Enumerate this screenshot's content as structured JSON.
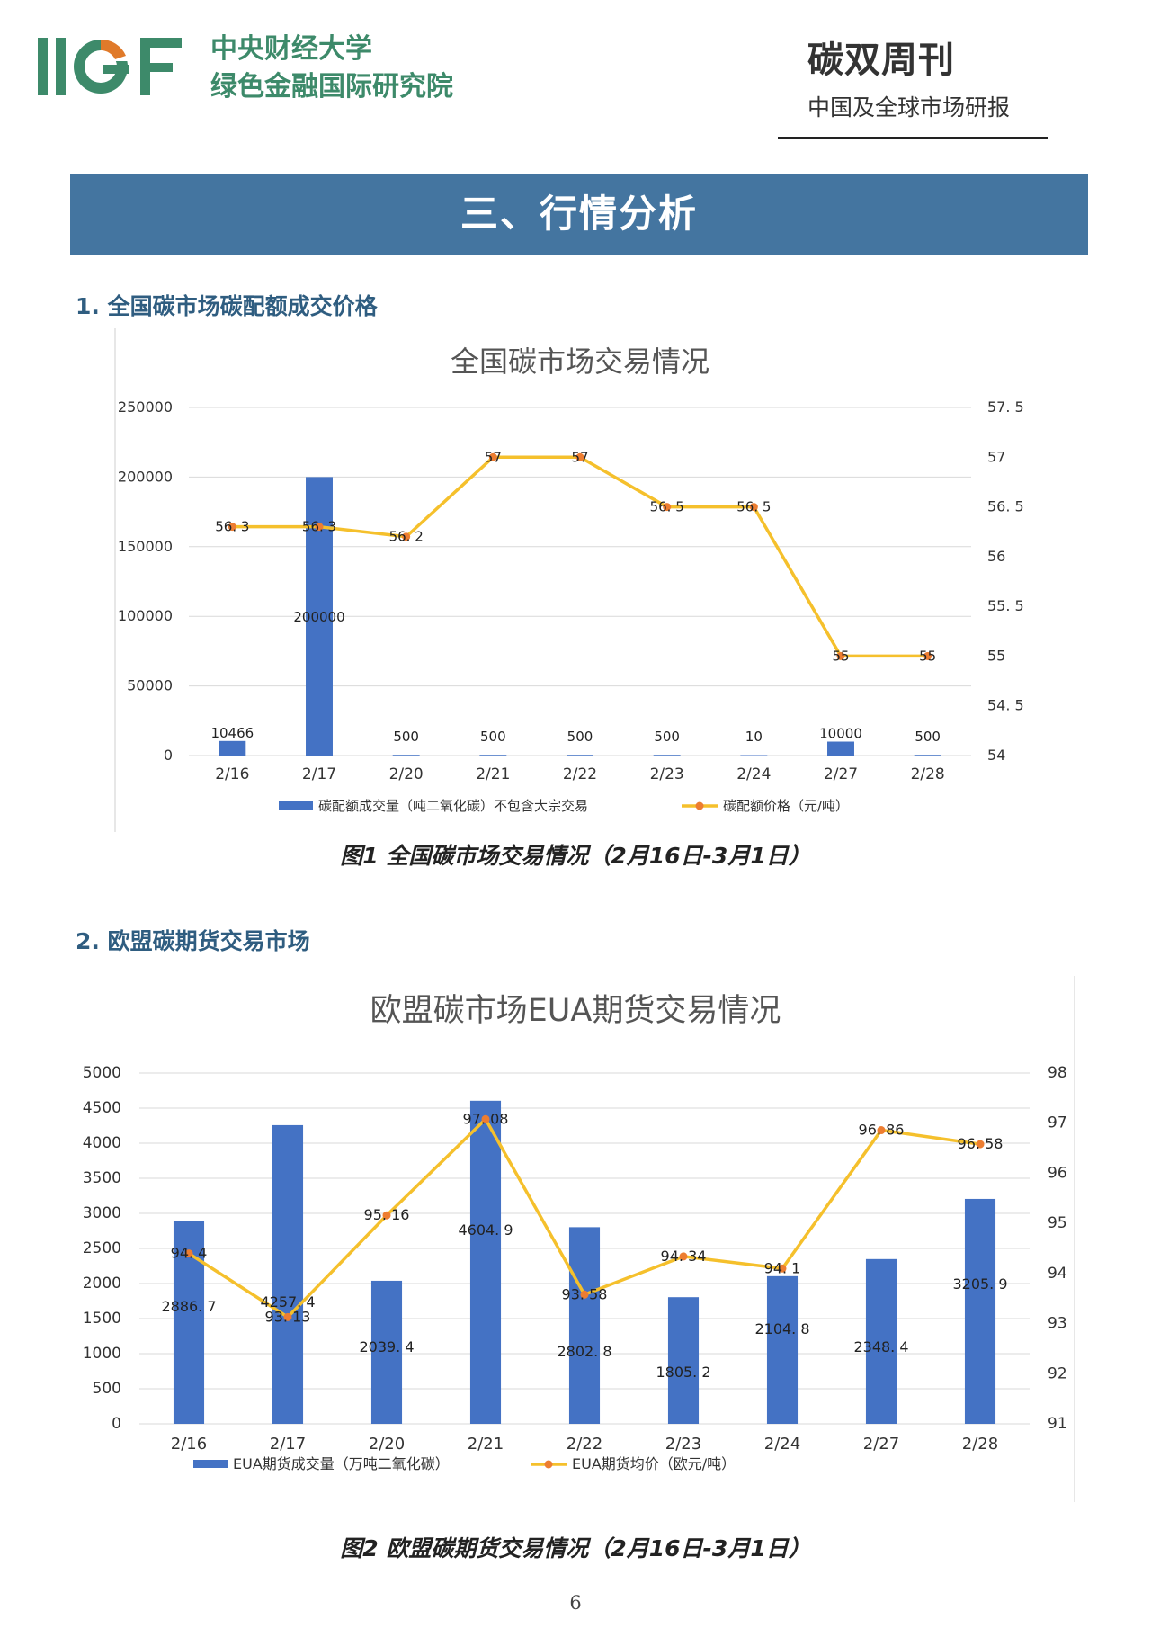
{
  "header": {
    "org_line1": "中央财经大学",
    "org_line2": "绿色金融国际研究院",
    "pub_title": "碳双周刊",
    "pub_subtitle": "中国及全球市场研报"
  },
  "banner": {
    "title": "三、行情分析"
  },
  "sections": [
    {
      "title": "1. 全国碳市场碳配额成交价格"
    },
    {
      "title": "2. 欧盟碳期货交易市场"
    }
  ],
  "captions": [
    "图1 全国碳市场交易情况（2月16日-3月1日）",
    "图2 欧盟碳期货交易情况（2月16日-3月1日）"
  ],
  "page_number": "6",
  "colors": {
    "bar": "#4472c4",
    "line": "#f5c02c",
    "marker": "#ed7d31",
    "banner": "#4475a0",
    "logo_green": "#3d8a6a"
  },
  "chart_data": [
    {
      "type": "bar+line",
      "title": "全国碳市场交易情况",
      "categories": [
        "2/16",
        "2/17",
        "2/20",
        "2/21",
        "2/22",
        "2/23",
        "2/24",
        "2/27",
        "2/28"
      ],
      "series": [
        {
          "name": "碳配额成交量（吨二氧化碳）不包含大宗交易",
          "type": "bar",
          "axis": "left",
          "values": [
            10466,
            200000,
            500,
            500,
            500,
            500,
            10,
            10000,
            500
          ],
          "labels": [
            "10466",
            "200000",
            "500",
            "500",
            "500",
            "500",
            "10",
            "10000",
            "500"
          ]
        },
        {
          "name": "碳配额价格（元/吨）",
          "type": "line",
          "axis": "right",
          "values": [
            56.3,
            56.3,
            56.2,
            57,
            57,
            56.5,
            56.5,
            55,
            55
          ],
          "labels": [
            "56. 3",
            "56. 3",
            "56. 2",
            "57",
            "57",
            "56. 5",
            "56. 5",
            "55",
            "55"
          ]
        }
      ],
      "left_axis": {
        "min": 0,
        "max": 250000,
        "ticks": [
          "0",
          "50000",
          "100000",
          "150000",
          "200000",
          "250000"
        ]
      },
      "right_axis": {
        "min": 54,
        "max": 57.5,
        "ticks": [
          "54",
          "54. 5",
          "55",
          "55. 5",
          "56",
          "56. 5",
          "57",
          "57. 5"
        ]
      },
      "grid": true,
      "legend": "bottom"
    },
    {
      "type": "bar+line",
      "title": "欧盟碳市场EUA期货交易情况",
      "categories": [
        "2/16",
        "2/17",
        "2/20",
        "2/21",
        "2/22",
        "2/23",
        "2/24",
        "2/27",
        "2/28"
      ],
      "series": [
        {
          "name": "EUA期货成交量（万吨二氧化碳）",
          "type": "bar",
          "axis": "left",
          "values": [
            2886.7,
            4257.4,
            2039.4,
            4604.9,
            2802.8,
            1805.2,
            2104.8,
            2348.4,
            3205.9
          ],
          "labels": [
            "2886. 7",
            "4257. 4",
            "2039. 4",
            "4604. 9",
            "2802. 8",
            "1805. 2",
            "2104. 8",
            "2348. 4",
            "3205. 9"
          ]
        },
        {
          "name": "EUA期货均价（欧元/吨）",
          "type": "line",
          "axis": "right",
          "values": [
            94.4,
            93.13,
            95.16,
            97.08,
            93.58,
            94.34,
            94.1,
            96.86,
            96.58
          ],
          "labels": [
            "94. 4",
            "93. 13",
            "95. 16",
            "97. 08",
            "93. 58",
            "94. 34",
            "94. 1",
            "96. 86",
            "96. 58"
          ]
        }
      ],
      "left_axis": {
        "min": 0,
        "max": 5000,
        "ticks": [
          "0",
          "500",
          "1000",
          "1500",
          "2000",
          "2500",
          "3000",
          "3500",
          "4000",
          "4500",
          "5000"
        ]
      },
      "right_axis": {
        "min": 91,
        "max": 98,
        "ticks": [
          "91",
          "92",
          "93",
          "94",
          "95",
          "96",
          "97",
          "98"
        ]
      },
      "grid": true,
      "legend": "bottom"
    }
  ]
}
